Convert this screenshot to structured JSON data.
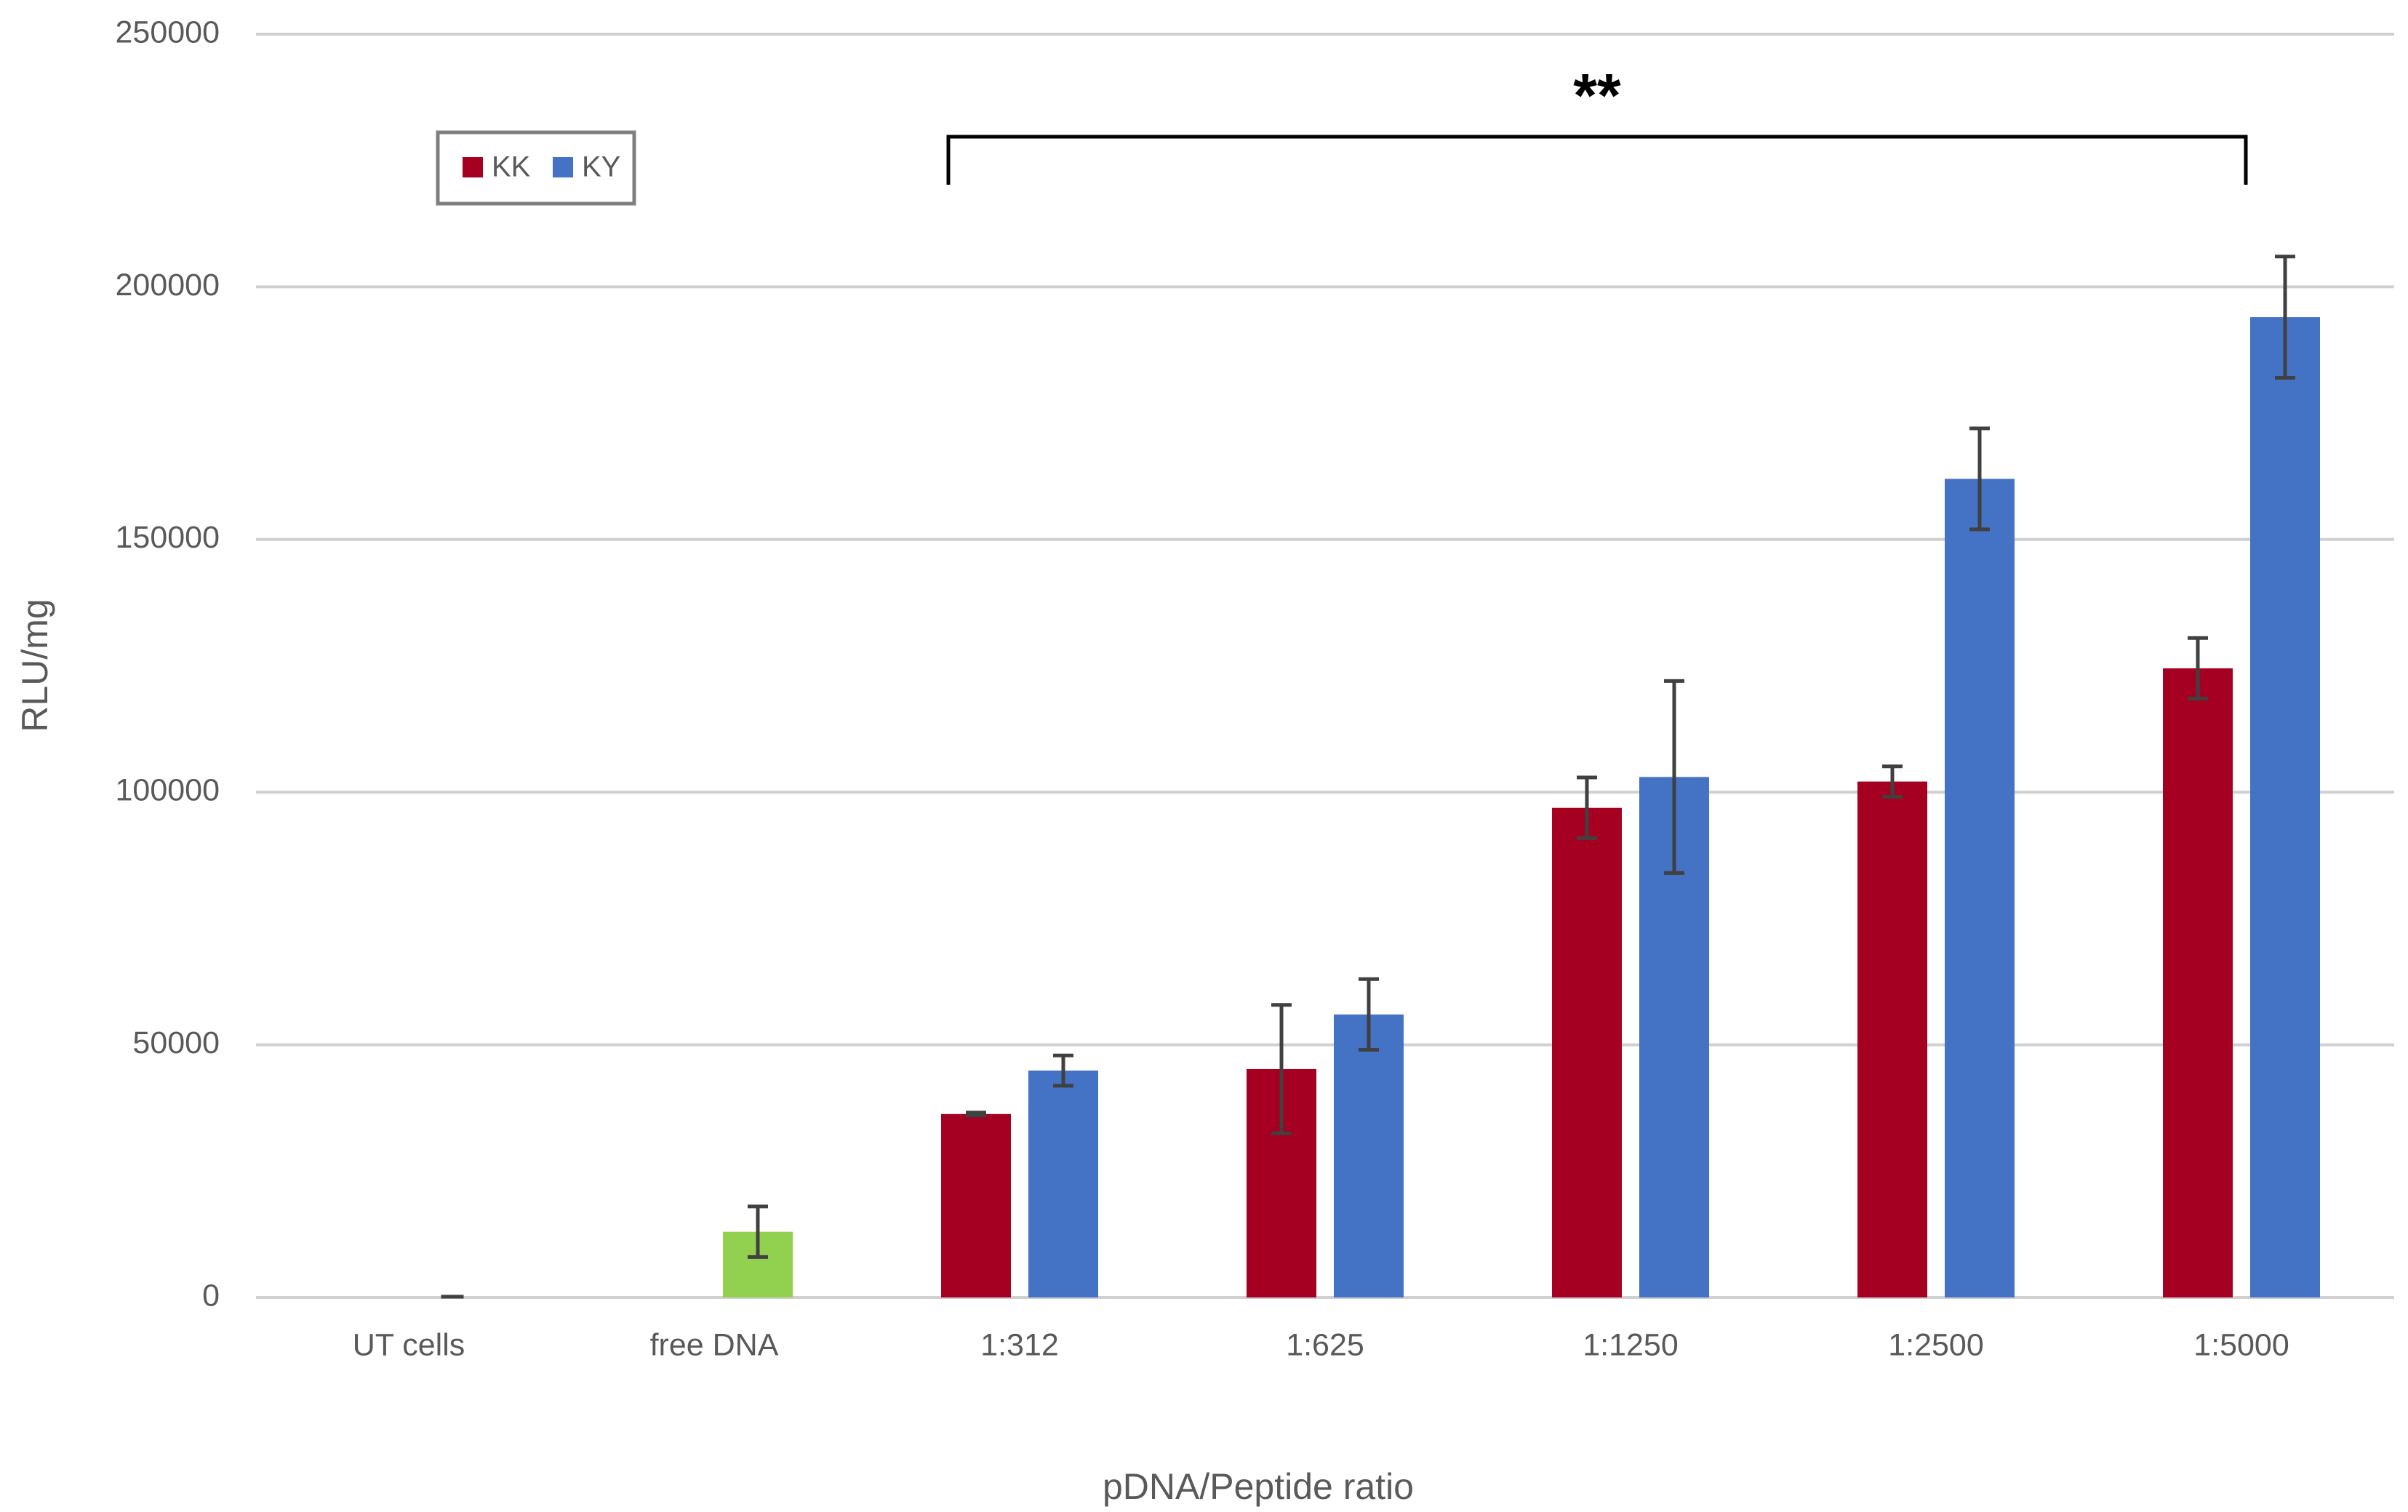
{
  "chart_data": {
    "type": "bar",
    "xlabel": "pDNA/Peptide ratio",
    "ylabel": "RLU/mg",
    "annotation": "**",
    "categories": [
      "UT cells",
      "free DNA",
      "1:312",
      "1:625",
      "1:1250",
      "1:2500",
      "1:5000"
    ],
    "series": [
      {
        "name": "KK",
        "color": "#a50021",
        "values": [
          null,
          null,
          36300,
          45200,
          96900,
          102100,
          124500
        ],
        "errors": [
          null,
          null,
          300,
          12700,
          6000,
          3000,
          6000
        ]
      },
      {
        "name": "KY",
        "color": "#4472c4",
        "values": [
          null,
          null,
          44900,
          56000,
          103000,
          162000,
          194000
        ],
        "errors": [
          null,
          null,
          3000,
          7000,
          19000,
          10000,
          12000
        ]
      }
    ],
    "control_values": [
      300,
      13000,
      null,
      null,
      null,
      null,
      null
    ],
    "control_errors": [
      0,
      5000,
      null,
      null,
      null,
      null,
      null
    ],
    "control_color": "#92d050",
    "ylim": [
      0,
      250000
    ],
    "yticks": [
      0,
      50000,
      100000,
      150000,
      200000,
      250000
    ],
    "grid": true,
    "legend": "upper left"
  }
}
